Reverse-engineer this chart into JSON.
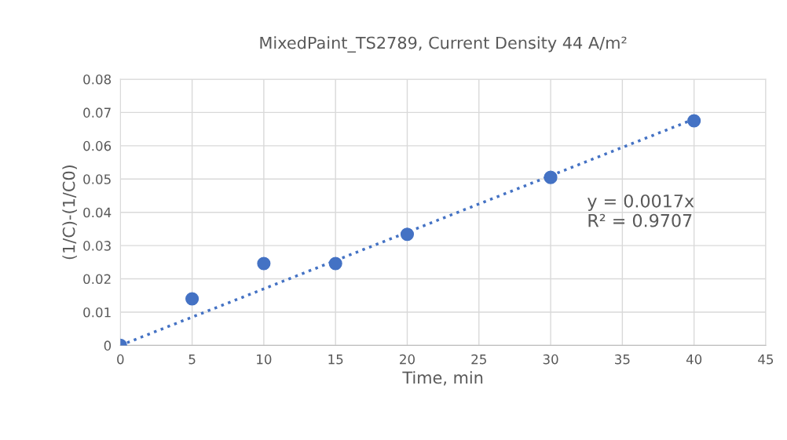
{
  "chart_data": {
    "type": "scatter",
    "title": "MixedPaint_TS2789, Current Density 44 A/m²",
    "xlabel": "Time, min",
    "ylabel": "(1/C)-(1/C0)",
    "series": [
      {
        "color": "#4472c4",
        "marker": "circle",
        "x": [
          0,
          5,
          10,
          15,
          20,
          30,
          40
        ],
        "values": [
          0,
          0.014,
          0.0246,
          0.0246,
          0.0334,
          0.0505,
          0.0675
        ]
      },
      {
        "type": "line",
        "color": "#4472c4",
        "marker": "none",
        "line_style": "dotted",
        "x": [
          0,
          40
        ],
        "values": [
          0,
          0.068
        ]
      }
    ],
    "annotations": [
      "y = 0.0017x\nR² = 0.9707"
    ],
    "xlim": [
      0,
      45
    ],
    "xticks": [
      0,
      5,
      10,
      15,
      20,
      25,
      30,
      35,
      40,
      45
    ],
    "ylim": [
      0,
      0.08
    ],
    "yticks": [
      0,
      0.01,
      0.02,
      0.03,
      0.04,
      0.05,
      0.06,
      0.07,
      0.08
    ],
    "grid": true,
    "legend": false
  }
}
